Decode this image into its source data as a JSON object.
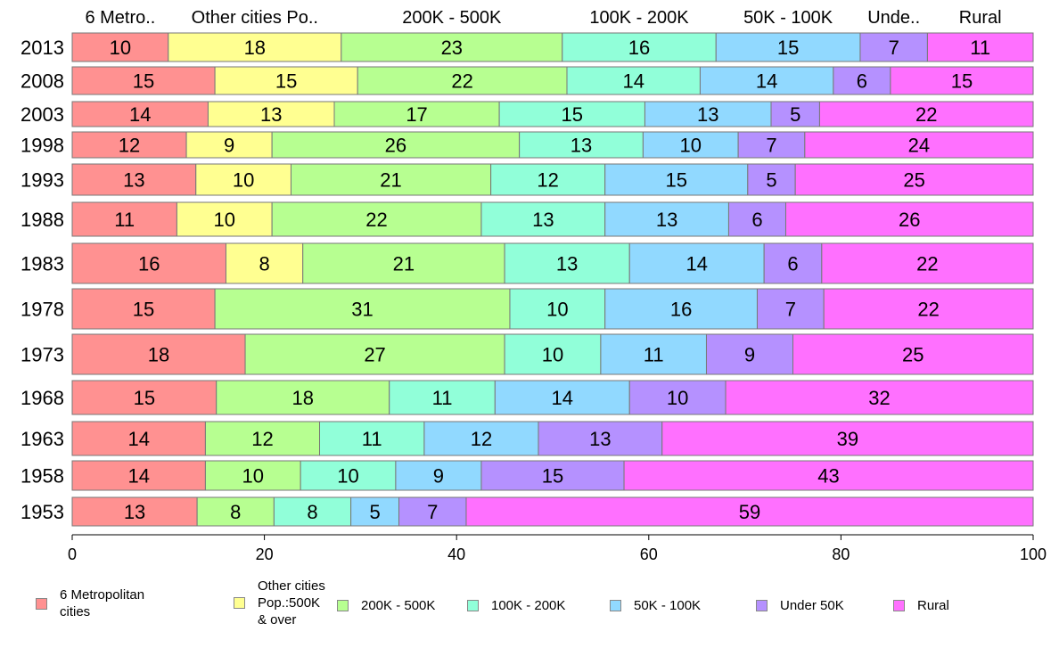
{
  "chart_data": {
    "type": "bar",
    "orientation": "horizontal",
    "stacked": true,
    "categories": [
      "2013",
      "2008",
      "2003",
      "1998",
      "1993",
      "1988",
      "1983",
      "1978",
      "1973",
      "1968",
      "1963",
      "1958",
      "1953"
    ],
    "series": [
      {
        "name": "6 Metropolitan cities",
        "short": "6 Metro..",
        "color": "#ff9191",
        "values": [
          10,
          15,
          14,
          12,
          13,
          11,
          16,
          15,
          18,
          15,
          14,
          14,
          13
        ]
      },
      {
        "name": "Other cities Pop.:500K & over",
        "short": "Other cities Po..",
        "color": "#ffff91",
        "values": [
          18,
          15,
          13,
          9,
          10,
          10,
          8,
          0,
          0,
          0,
          0,
          0,
          0
        ]
      },
      {
        "name": "200K - 500K",
        "short": "200K - 500K",
        "color": "#b7ff91",
        "values": [
          23,
          22,
          17,
          26,
          21,
          22,
          21,
          31,
          27,
          18,
          12,
          10,
          8
        ]
      },
      {
        "name": "100K - 200K",
        "short": "100K - 200K",
        "color": "#91ffd9",
        "values": [
          16,
          14,
          15,
          13,
          12,
          13,
          13,
          10,
          10,
          11,
          11,
          10,
          8
        ]
      },
      {
        "name": "50K - 100K",
        "short": "50K - 100K",
        "color": "#91d9ff",
        "values": [
          15,
          14,
          13,
          10,
          15,
          13,
          14,
          16,
          11,
          14,
          12,
          9,
          5
        ]
      },
      {
        "name": "Under 50K",
        "short": "Unde..",
        "color": "#b591ff",
        "values": [
          7,
          6,
          5,
          7,
          5,
          6,
          6,
          7,
          9,
          10,
          13,
          15,
          7
        ]
      },
      {
        "name": "Rural",
        "short": "Rural",
        "color": "#ff70ff",
        "values": [
          11,
          15,
          22,
          24,
          25,
          26,
          22,
          22,
          25,
          32,
          39,
          43,
          59
        ]
      }
    ],
    "xlim": [
      0,
      100
    ],
    "xticks": [
      "0",
      "20",
      "40",
      "60",
      "80",
      "100"
    ],
    "legend_position": "bottom",
    "legend_labels": [
      "6 Metropolitan\n cities",
      "Other cities\nPop.:500K\n & over",
      "200K - 500K",
      "100K - 200K",
      "50K - 100K",
      "Under 50K",
      "Rural"
    ]
  }
}
